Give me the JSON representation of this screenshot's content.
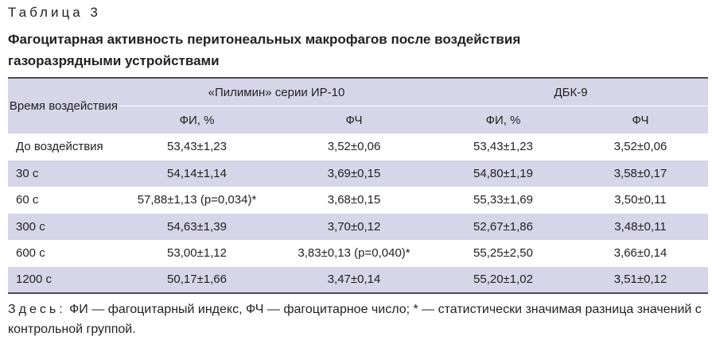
{
  "caption": "Таблица 3",
  "title": "Фагоцитарная активность перитонеальных макрофагов после воздействия газоразрядными устройствами",
  "table": {
    "group_headers": [
      "Время воздействия",
      "«Пилимин» серии ИР-10",
      "ДБК-9"
    ],
    "sub_headers": [
      "ФИ, %",
      "ФЧ",
      "ФИ, %",
      "ФЧ"
    ],
    "rows": [
      [
        "До воздействия",
        "53,43±1,23",
        "3,52±0,06",
        "53,43±1,23",
        "3,52±0,06"
      ],
      [
        "30 с",
        "54,14±1,14",
        "3,69±0,15",
        "54,80±1,19",
        "3,58±0,17"
      ],
      [
        "60 с",
        "57,88±1,13 (p=0,034)*",
        "3,68±0,15",
        "55,33±1,69",
        "3,50±0,11"
      ],
      [
        "300 с",
        "54,63±1,39",
        "3,70±0,12",
        "52,67±1,86",
        "3,48±0,11"
      ],
      [
        "600 с",
        "53,00±1,12",
        "3,83±0,13 (p=0,040)*",
        "55,25±2,50",
        "3,66±0,14"
      ],
      [
        "1200 с",
        "50,17±1,66",
        "3,47±0,14",
        "55,20±1,02",
        "3,51±0,12"
      ]
    ]
  },
  "note_label": "Здесь:",
  "note": "ФИ — фагоцитарный индекс, ФЧ — фагоцитарное число; * — статистически значимая разница значений с контрольной группой."
}
